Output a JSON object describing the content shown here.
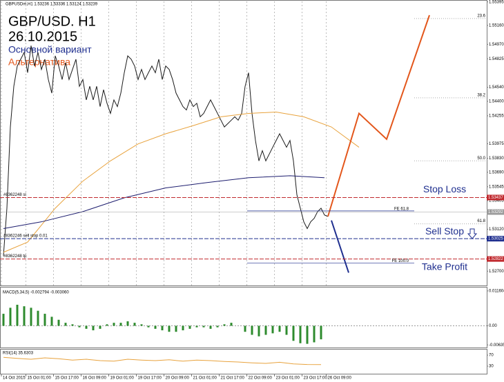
{
  "header": "GBPUSDm,H1  1.53236 1.53336 1.53124 1.53239",
  "chart_data": [
    {
      "type": "line",
      "title": "GBP/USD. H1",
      "subtitle": "26.10.2015",
      "xlim": [
        0,
        282
      ],
      "ylim": [
        1.5255,
        1.554
      ],
      "xticks": [
        {
          "value": 0.8,
          "label": "14 Oct 2015"
        },
        {
          "value": 15,
          "label": "15 Oct 01:00"
        },
        {
          "value": 31,
          "label": "15 Oct 17:00"
        },
        {
          "value": 47,
          "label": "16 Oct 09:00"
        },
        {
          "value": 63,
          "label": "19 Oct 01:00"
        },
        {
          "value": 79,
          "label": "19 Oct 17:00"
        },
        {
          "value": 95,
          "label": "20 Oct 09:00"
        },
        {
          "value": 111,
          "label": "21 Oct 01:00"
        },
        {
          "value": 127,
          "label": "21 Oct 17:00"
        },
        {
          "value": 143,
          "label": "22 Oct 09:00"
        },
        {
          "value": 159,
          "label": "23 Oct 01:00"
        },
        {
          "value": 175,
          "label": "23 Oct 17:00"
        },
        {
          "value": 189,
          "label": "26 Oct 09:00"
        }
      ],
      "yticks": [
        1.55395,
        {
          "value": 1.5516,
          "label": "1.55160"
        },
        {
          "value": 1.5497,
          "label": "1.54970"
        },
        1.54825,
        {
          "value": 1.5454,
          "label": "1.54540"
        },
        {
          "value": 1.544,
          "label": "1.54400"
        },
        1.54255,
        1.53975,
        {
          "value": 1.5383,
          "label": "1.53830"
        },
        {
          "value": 1.5369,
          "label": "1.53690"
        },
        1.53545,
        1.53405,
        {
          "value": 1.5312,
          "label": "1.53120"
        },
        {
          "value": 1.527,
          "label": "1.52700"
        }
      ],
      "grid": true,
      "x": [
        2,
        4,
        6,
        8,
        10,
        12,
        14,
        16,
        18,
        20,
        22,
        24,
        26,
        28,
        30,
        32,
        34,
        36,
        38,
        40,
        42,
        44,
        46,
        48,
        50,
        52,
        54,
        56,
        58,
        60,
        62,
        64,
        66,
        68,
        70,
        72,
        74,
        76,
        78,
        80,
        82,
        84,
        86,
        88,
        90,
        92,
        94,
        96,
        98,
        100,
        102,
        104,
        106,
        108,
        110,
        112,
        114,
        116,
        118,
        120,
        122,
        124,
        126,
        128,
        130,
        132,
        134,
        136,
        138,
        140,
        142,
        144,
        146,
        148,
        150,
        152,
        154,
        156,
        158,
        160,
        162,
        164,
        166,
        168,
        170,
        172,
        174,
        176,
        178,
        180,
        182,
        184,
        186,
        188,
        190
      ],
      "series": [
        {
          "color": "#1a1a1a",
          "values": [
            1.52855,
            1.5333,
            1.54143,
            1.5455,
            1.54753,
            1.54821,
            1.54889,
            1.54686,
            1.54957,
            1.54753,
            1.54889,
            1.54719,
            1.54821,
            1.54618,
            1.54482,
            1.54855,
            1.54753,
            1.54618,
            1.54787,
            1.54618,
            1.54719,
            1.54821,
            1.5455,
            1.54618,
            1.54414,
            1.5455,
            1.54414,
            1.5455,
            1.54347,
            1.54516,
            1.5438,
            1.54279,
            1.54414,
            1.54347,
            1.54482,
            1.54686,
            1.54855,
            1.54821,
            1.54753,
            1.54618,
            1.54719,
            1.54618,
            1.54686,
            1.54753,
            1.54686,
            1.54821,
            1.54618,
            1.54753,
            1.54719,
            1.54618,
            1.54482,
            1.54414,
            1.54347,
            1.54313,
            1.54414,
            1.54347,
            1.5438,
            1.54245,
            1.54279,
            1.54347,
            1.54414,
            1.54347,
            1.54279,
            1.54211,
            1.54143,
            1.54177,
            1.54211,
            1.54245,
            1.54211,
            1.54279,
            1.5455,
            1.54686,
            1.54279,
            1.54008,
            1.53804,
            1.53906,
            1.53804,
            1.53872,
            1.5394,
            1.54008,
            1.54075,
            1.54008,
            1.5394,
            1.54008,
            1.53804,
            1.53465,
            1.5333,
            1.53194,
            1.53126,
            1.53194,
            1.53228,
            1.53296,
            1.5333,
            1.53262,
            1.53248
          ]
        },
        {
          "color": "#e8a23c",
          "x": [
            2,
            16,
            32,
            48,
            64,
            80,
            96,
            112,
            128,
            144,
            160,
            176,
            192,
            208
          ],
          "values": [
            1.52889,
            1.52991,
            1.5333,
            1.53601,
            1.53804,
            1.53974,
            1.54075,
            1.54157,
            1.54245,
            1.54279,
            1.54292,
            1.54245,
            1.54143,
            1.5394
          ]
        },
        {
          "color": "#1c1c6e",
          "x": [
            2,
            24,
            48,
            72,
            96,
            120,
            144,
            168,
            188
          ],
          "values": [
            1.53126,
            1.53194,
            1.53296,
            1.53434,
            1.53533,
            1.53587,
            1.53635,
            1.53655,
            1.53635
          ]
        },
        {
          "name": "Основной вариант",
          "color": "#1f2f8f",
          "x": [
            192,
            202
          ],
          "values": [
            1.53208,
            1.52685
          ]
        },
        {
          "name": "Альтернатива",
          "color": "#e3561b",
          "x": [
            190,
            208,
            224,
            248.8
          ],
          "values": [
            1.53248,
            1.54279,
            1.54021,
            1.55262
          ]
        }
      ],
      "levels": [
        {
          "name": "Stop Loss",
          "tag": "#8362248 sl",
          "value": 1.53437,
          "color": "#c0282d"
        },
        {
          "tag": "",
          "value": 1.53292,
          "color": "#9a9a9a"
        },
        {
          "name": "Sell Stop",
          "tag": "#8362246 sell stop 0.01",
          "value": 1.53025,
          "color": "#1f2f8f"
        },
        {
          "name": "Take Profit",
          "tag": "#8362248 tp",
          "value": 1.52822,
          "color": "#c0282d"
        }
      ],
      "fib_levels": [
        {
          "label": "23.6",
          "value": 1.55228
        },
        {
          "label": "38.2",
          "value": 1.54435
        },
        {
          "label": "50.0",
          "value": 1.53804
        },
        {
          "label": "61.8",
          "value": 1.53174
        }
      ],
      "fe_levels": [
        {
          "label": "FE 61.8",
          "value": 1.53303
        },
        {
          "label": "FE 100.0",
          "value": 1.5278
        }
      ]
    },
    {
      "type": "bar",
      "title": "MACD(5,34,5) -0.002794 -0.003060",
      "color": "#2e8b2e",
      "xlim": [
        0,
        282
      ],
      "ylim": [
        -0.007,
        0.0125
      ],
      "yticks": [
        0.011604,
        {
          "value": 0,
          "label": "0.00"
        },
        -0.006353
      ],
      "x": [
        2,
        6,
        10,
        14,
        18,
        22,
        26,
        30,
        34,
        38,
        42,
        46,
        50,
        54,
        58,
        62,
        66,
        70,
        74,
        78,
        82,
        86,
        90,
        94,
        98,
        102,
        106,
        110,
        114,
        118,
        122,
        126,
        130,
        134,
        138,
        142,
        146,
        150,
        154,
        158,
        162,
        166,
        170,
        174,
        178,
        182,
        186
      ],
      "values": [
        0.004,
        0.006,
        0.007,
        0.0065,
        0.006,
        0.005,
        0.004,
        0.003,
        0.002,
        0.001,
        0.0005,
        -0.0005,
        -0.001,
        -0.0015,
        -0.001,
        0.0005,
        0.001,
        0.001,
        0.0015,
        0.001,
        0.0005,
        -0.0005,
        -0.001,
        -0.0015,
        -0.002,
        -0.002,
        -0.0015,
        -0.001,
        -0.0005,
        -0.0005,
        -0.001,
        -0.0005,
        0.0005,
        0.001,
        0,
        -0.002,
        -0.003,
        -0.0035,
        -0.003,
        -0.0025,
        -0.002,
        -0.003,
        -0.005,
        -0.0058,
        -0.006,
        -0.0055,
        -0.0045
      ]
    },
    {
      "type": "line",
      "title": "RSI(14) 35.6303",
      "xlim": [
        0,
        282
      ],
      "ylim": [
        0,
        100
      ],
      "yticks": [
        70,
        30
      ],
      "x": [
        2,
        10,
        18,
        26,
        34,
        42,
        50,
        58,
        66,
        74,
        82,
        90,
        98,
        106,
        114,
        122,
        130,
        138,
        146,
        154,
        162,
        170,
        178,
        186
      ],
      "series": [
        {
          "color": "#e8a23c",
          "values": [
            62,
            58,
            55,
            60,
            57,
            52,
            55,
            50,
            48,
            55,
            52,
            50,
            53,
            48,
            52,
            50,
            47,
            45,
            42,
            40,
            44,
            38,
            36,
            35.6
          ]
        }
      ]
    }
  ]
}
